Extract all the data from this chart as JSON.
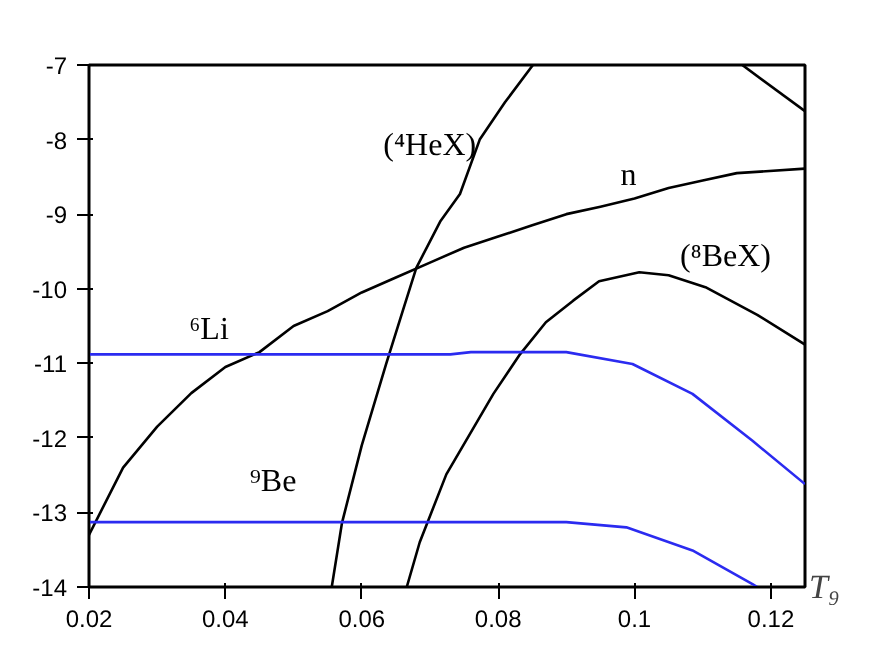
{
  "chart_data": {
    "type": "line",
    "xlabel": "T₉",
    "xlim": [
      0.02,
      0.125
    ],
    "ylim": [
      -14,
      -7
    ],
    "xticks": [
      0.02,
      0.04,
      0.06,
      0.08,
      0.1,
      0.12
    ],
    "yticks": [
      -14,
      -13,
      -12,
      -11,
      -10,
      -9,
      -8,
      -7
    ],
    "grid": false,
    "marker": "none",
    "line_style": "solid",
    "series": [
      {
        "name": "n",
        "color": "#000000",
        "x": [
          0.02,
          0.025,
          0.03,
          0.035,
          0.04,
          0.045,
          0.05,
          0.055,
          0.06,
          0.065,
          0.07,
          0.075,
          0.08,
          0.085,
          0.09,
          0.095,
          0.1,
          0.105,
          0.11,
          0.115,
          0.125
        ],
        "values": [
          -13.3,
          -12.4,
          -11.85,
          -11.4,
          -11.05,
          -10.85,
          -10.5,
          -10.3,
          -10.05,
          -9.85,
          -9.65,
          -9.45,
          -9.3,
          -9.15,
          -9.0,
          -8.9,
          -8.79,
          -8.65,
          -8.55,
          -8.45,
          -8.39
        ]
      },
      {
        "name": "(⁴HeX)",
        "color": "#000000",
        "x": [
          0.0556,
          0.0571,
          0.06,
          0.0636,
          0.066,
          0.068,
          0.0715,
          0.0744,
          0.0773,
          0.081,
          0.0851
        ],
        "values": [
          -14,
          -13.14,
          -12.1,
          -11.0,
          -10.3,
          -9.72,
          -9.1,
          -8.73,
          -8.0,
          -7.5,
          -7
        ]
      },
      {
        "name": "(⁸BeX)",
        "color": "#000000",
        "x": [
          0.0666,
          0.0685,
          0.0724,
          0.0793,
          0.0832,
          0.087,
          0.091,
          0.0948,
          0.1007,
          0.105,
          0.1104,
          0.118,
          0.125
        ],
        "values": [
          -14,
          -13.4,
          -12.49,
          -11.41,
          -10.88,
          -10.45,
          -10.16,
          -9.9,
          -9.78,
          -9.82,
          -9.98,
          -10.35,
          -10.75
        ]
      },
      {
        "color": "#000000",
        "x": [
          0.1158,
          0.125
        ],
        "values": [
          -7,
          -7.62
        ]
      },
      {
        "name": "⁶Li",
        "color": "#2b2bf0",
        "x": [
          0.02,
          0.073,
          0.076,
          0.09,
          0.0997,
          0.1085,
          0.1173,
          0.125
        ],
        "values": [
          -10.88,
          -10.88,
          -10.85,
          -10.85,
          -11.01,
          -11.41,
          -12.04,
          -12.62
        ]
      },
      {
        "name": "⁹Be",
        "color": "#2b2bf0",
        "x": [
          0.02,
          0.09,
          0.0988,
          0.1085,
          0.1173,
          0.118
        ],
        "values": [
          -13.13,
          -13.13,
          -13.2,
          -13.51,
          -13.96,
          -14
        ]
      }
    ]
  }
}
